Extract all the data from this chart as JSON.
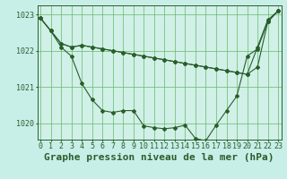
{
  "background_color": "#c8eee8",
  "plot_background": "#d0f0e8",
  "grid_color": "#68b868",
  "line_color": "#2a5e2a",
  "marker_color": "#2a5e2a",
  "xlabel": "Graphe pression niveau de la mer (hPa)",
  "ylim": [
    1019.55,
    1023.25
  ],
  "yticks": [
    1020,
    1021,
    1022,
    1023
  ],
  "xticks": [
    0,
    1,
    2,
    3,
    4,
    5,
    6,
    7,
    8,
    9,
    10,
    11,
    12,
    13,
    14,
    15,
    16,
    17,
    18,
    19,
    20,
    21,
    22,
    23
  ],
  "line1": [
    1022.9,
    1022.55,
    1022.2,
    1022.1,
    1022.15,
    1022.1,
    1022.05,
    1022.0,
    1021.95,
    1021.9,
    1021.85,
    1021.8,
    1021.75,
    1021.7,
    1021.65,
    1021.6,
    1021.55,
    1021.5,
    1021.45,
    1021.4,
    1021.35,
    1021.55,
    1022.8,
    1023.1
  ],
  "line2": [
    1022.9,
    1022.55,
    1022.1,
    1021.85,
    1021.1,
    1020.65,
    1020.35,
    1020.3,
    1020.35,
    1020.35,
    1019.93,
    1019.88,
    1019.85,
    1019.88,
    1019.95,
    1019.58,
    1019.52,
    1019.95,
    1020.35,
    1020.75,
    1021.85,
    1022.05,
    1022.8,
    1023.1
  ],
  "line3": [
    1022.9,
    1022.55,
    1022.2,
    1022.1,
    1022.15,
    1022.1,
    1022.05,
    1022.0,
    1021.95,
    1021.9,
    1021.85,
    1021.8,
    1021.75,
    1021.7,
    1021.65,
    1021.6,
    1021.55,
    1021.5,
    1021.45,
    1021.4,
    1021.35,
    1022.1,
    1022.85,
    1023.1
  ],
  "title_fontsize": 8,
  "tick_fontsize": 6,
  "figsize": [
    3.2,
    2.0
  ],
  "dpi": 100
}
